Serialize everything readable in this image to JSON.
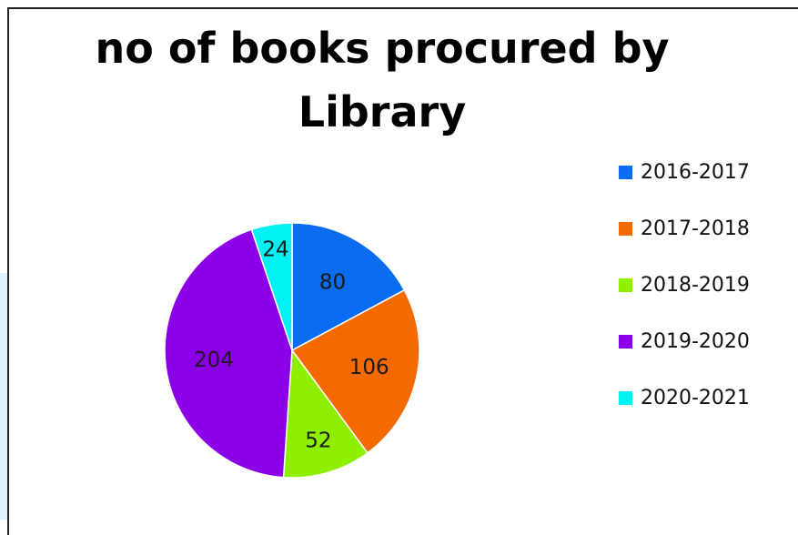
{
  "chart_data": {
    "type": "pie",
    "title_line1": "no of books procured by",
    "title_line2": "Library",
    "categories": [
      "2016-2017",
      "2017-2018",
      "2018-2019",
      "2019-2020",
      "2020-2021"
    ],
    "values": [
      80,
      106,
      52,
      204,
      24
    ],
    "colors": [
      "#0a6cf0",
      "#f56a00",
      "#8ef000",
      "#8b00e8",
      "#00f2f2"
    ],
    "legend_position": "right",
    "start_angle_deg": 0,
    "direction": "clockwise"
  }
}
